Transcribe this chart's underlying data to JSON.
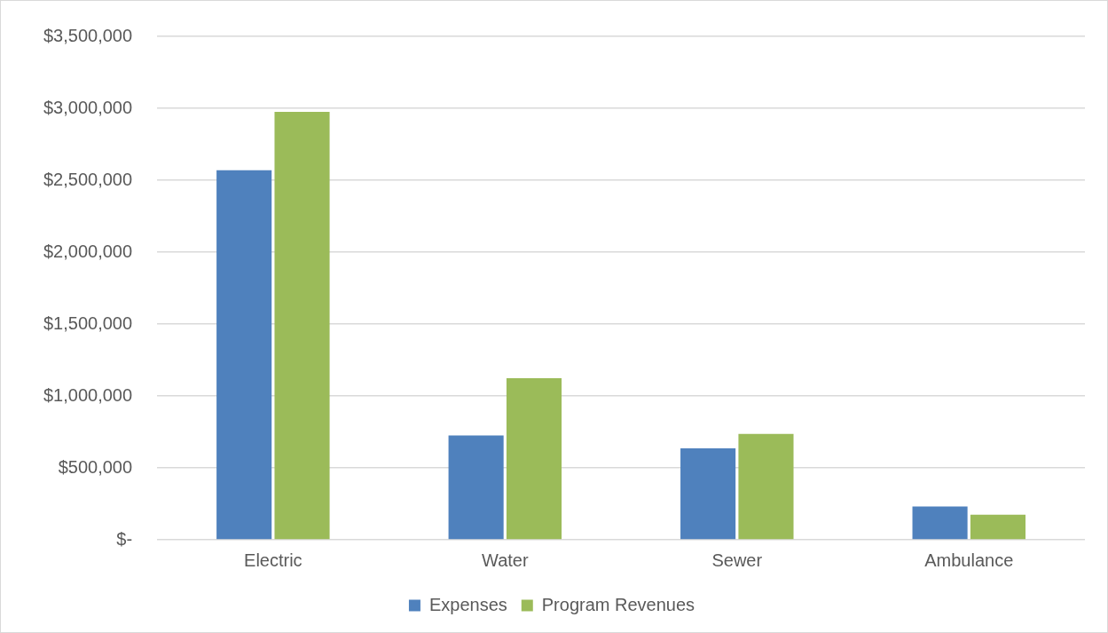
{
  "chart_data": {
    "type": "bar",
    "categories": [
      "Electric",
      "Water",
      "Sewer",
      "Ambulance"
    ],
    "series": [
      {
        "name": "Expenses",
        "color": "#4f81bd",
        "values": [
          2570000,
          725000,
          636000,
          231000
        ]
      },
      {
        "name": "Program Revenues",
        "color": "#9bbb59",
        "values": [
          2975000,
          1123000,
          736000,
          175000
        ]
      }
    ],
    "ylim": [
      0,
      3500000
    ],
    "yticks": [
      {
        "value": 0,
        "label": "$-"
      },
      {
        "value": 500000,
        "label": "$500,000"
      },
      {
        "value": 1000000,
        "label": "$1,000,000"
      },
      {
        "value": 1500000,
        "label": "$1,500,000"
      },
      {
        "value": 2000000,
        "label": "$2,000,000"
      },
      {
        "value": 2500000,
        "label": "$2,500,000"
      },
      {
        "value": 3000000,
        "label": "$3,000,000"
      },
      {
        "value": 3500000,
        "label": "$3,500,000"
      }
    ],
    "grid": "y",
    "legend": "bottom"
  }
}
